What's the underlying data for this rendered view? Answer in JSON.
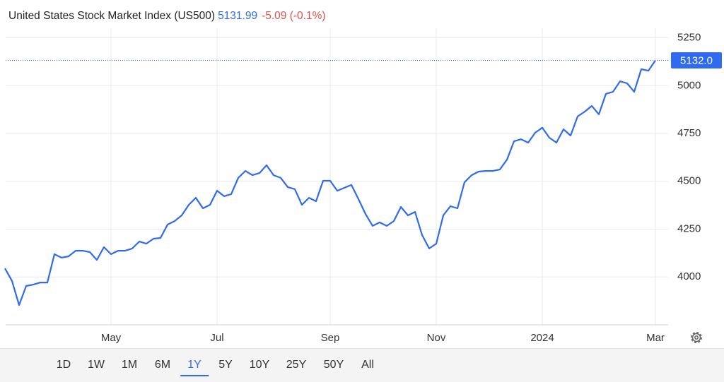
{
  "chart_data": {
    "type": "line",
    "title": "United States Stock Market Index (US500)",
    "price": "5131.99",
    "change": "-5.09 (-0.1%)",
    "color": "#2f6bf0",
    "categories": [
      null,
      null,
      null,
      null,
      null,
      null,
      null,
      null,
      null,
      null,
      null,
      null,
      null,
      null,
      null,
      "May",
      null,
      null,
      null,
      null,
      null,
      null,
      null,
      null,
      null,
      null,
      null,
      null,
      null,
      null,
      "Jul",
      null,
      null,
      null,
      null,
      null,
      null,
      null,
      null,
      null,
      null,
      null,
      null,
      null,
      null,
      null,
      "Sep",
      null,
      null,
      null,
      null,
      null,
      null,
      null,
      null,
      null,
      null,
      null,
      null,
      null,
      null,
      "Nov",
      null,
      null,
      null,
      null,
      null,
      null,
      null,
      null,
      null,
      null,
      null,
      null,
      null,
      null,
      "2024",
      null,
      null,
      null,
      null,
      null,
      null,
      null,
      null,
      null,
      null,
      null,
      null,
      null,
      null,
      null,
      "Mar"
    ],
    "values": [
      4045,
      3979,
      3853,
      3953,
      3960,
      3971,
      3971,
      4119,
      4101,
      4108,
      4137,
      4137,
      4130,
      4089,
      4156,
      4119,
      4137,
      4137,
      4149,
      4185,
      4174,
      4200,
      4204,
      4274,
      4292,
      4322,
      4377,
      4414,
      4359,
      4377,
      4451,
      4422,
      4433,
      4518,
      4554,
      4532,
      4543,
      4584,
      4532,
      4518,
      4470,
      4459,
      4377,
      4414,
      4396,
      4503,
      4503,
      4451,
      4466,
      4481,
      4407,
      4329,
      4267,
      4285,
      4267,
      4292,
      4366,
      4322,
      4340,
      4219,
      4149,
      4174,
      4322,
      4370,
      4359,
      4495,
      4532,
      4551,
      4554,
      4554,
      4562,
      4613,
      4709,
      4720,
      4702,
      4754,
      4780,
      4728,
      4702,
      4772,
      4739,
      4839,
      4864,
      4894,
      4850,
      4957,
      4968,
      5023,
      5012,
      4968,
      5086,
      5078,
      5132
    ],
    "last_value": {
      "value": 5132,
      "label": "5132.0"
    },
    "ylim": [
      3750,
      5300
    ],
    "yticks": [
      4000,
      4250,
      4500,
      4750,
      5000,
      5250
    ],
    "grid": true,
    "ranges": [
      "1D",
      "1W",
      "1M",
      "6M",
      "1Y",
      "5Y",
      "10Y",
      "25Y",
      "50Y",
      "All"
    ],
    "active_range": "1Y"
  }
}
